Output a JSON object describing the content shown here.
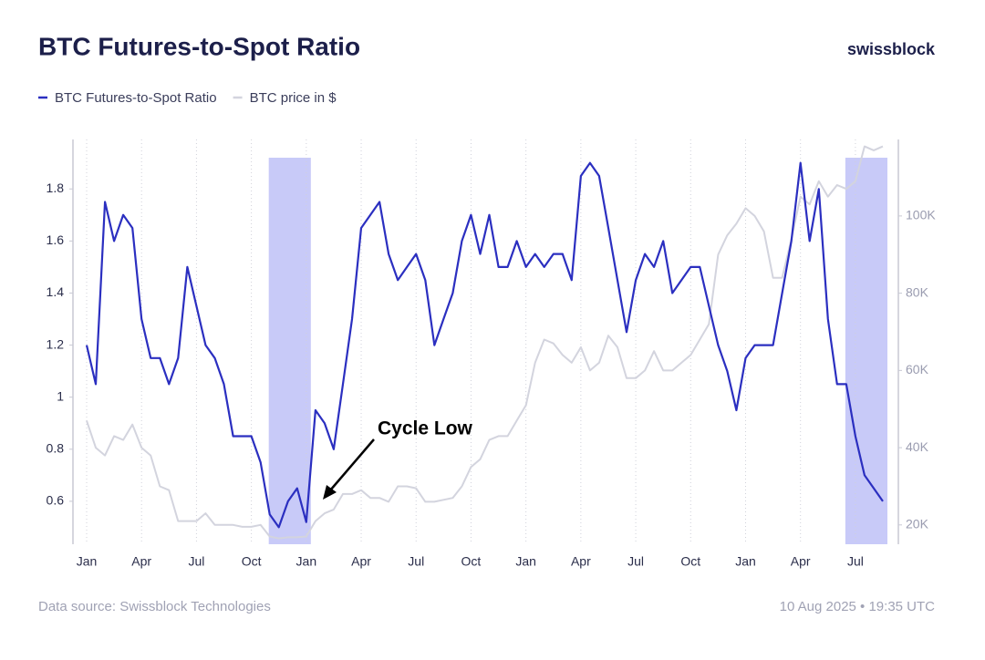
{
  "chart_data": {
    "type": "line",
    "title": "BTC Futures-to-Spot Ratio",
    "brand": "swissblock",
    "source": "Data source: Swissblock Technologies",
    "timestamp": "10 Aug 2025 • 19:35 UTC",
    "annotation": "Cycle Low",
    "categories": [
      "Jan",
      null,
      null,
      null,
      null,
      null,
      "Apr",
      null,
      null,
      null,
      null,
      null,
      "Jul",
      null,
      null,
      null,
      null,
      null,
      "Oct",
      null,
      null,
      null,
      null,
      null,
      "Jan",
      null,
      null,
      null,
      null,
      null,
      "Apr",
      null,
      null,
      null,
      null,
      null,
      "Jul",
      null,
      null,
      null,
      null,
      null,
      "Oct",
      null,
      null,
      null,
      null,
      null,
      "Jan",
      null,
      null,
      null,
      null,
      null,
      "Apr",
      null,
      null,
      null,
      null,
      null,
      "Jul",
      null,
      null,
      null,
      null,
      null,
      "Oct",
      null,
      null,
      null,
      null,
      null,
      "Jan",
      null,
      null,
      null,
      null,
      null,
      "Apr",
      null,
      null,
      null,
      null,
      null,
      "Jul",
      null,
      null,
      null
    ],
    "series": [
      {
        "name": "BTC Futures-to-Spot Ratio",
        "color": "#2b2fc0",
        "values": [
          1.2,
          1.05,
          1.75,
          1.6,
          1.7,
          1.65,
          1.3,
          1.15,
          1.15,
          1.05,
          1.15,
          1.5,
          1.35,
          1.2,
          1.15,
          1.05,
          0.85,
          0.85,
          0.85,
          0.75,
          0.55,
          0.5,
          0.6,
          0.65,
          0.52,
          0.95,
          0.9,
          0.8,
          1.05,
          1.3,
          1.65,
          1.7,
          1.75,
          1.55,
          1.45,
          1.5,
          1.55,
          1.45,
          1.2,
          1.3,
          1.4,
          1.6,
          1.7,
          1.55,
          1.7,
          1.5,
          1.5,
          1.6,
          1.5,
          1.55,
          1.5,
          1.55,
          1.55,
          1.45,
          1.85,
          1.9,
          1.85,
          1.65,
          1.45,
          1.25,
          1.45,
          1.55,
          1.5,
          1.6,
          1.4,
          1.45,
          1.5,
          1.5,
          1.35,
          1.2,
          1.1,
          0.95,
          1.15,
          1.2,
          1.2,
          1.2,
          1.4,
          1.6,
          1.9,
          1.6,
          1.8,
          1.3,
          1.05,
          1.05,
          0.85,
          0.7,
          0.65,
          0.6
        ]
      },
      {
        "name": "BTC price in $",
        "color": "#d3d4de",
        "axis": "y2",
        "values": [
          47000,
          40000,
          38000,
          43000,
          42000,
          46000,
          40000,
          38000,
          30000,
          29000,
          21000,
          21000,
          21000,
          23000,
          20000,
          20000,
          20000,
          19500,
          19500,
          20000,
          17000,
          16500,
          16800,
          16800,
          17000,
          21000,
          23000,
          24000,
          28000,
          28000,
          29000,
          27000,
          27000,
          26000,
          30000,
          30000,
          29500,
          26000,
          26000,
          26500,
          27000,
          30000,
          35000,
          37000,
          42000,
          43000,
          43000,
          47000,
          51000,
          62000,
          68000,
          67000,
          64000,
          62000,
          66000,
          60000,
          62000,
          69000,
          66000,
          58000,
          58000,
          60000,
          65000,
          60000,
          60000,
          62000,
          64000,
          68000,
          72000,
          90000,
          95000,
          98000,
          102000,
          100000,
          96000,
          84000,
          84000,
          94000,
          105000,
          103000,
          109000,
          105000,
          108000,
          107000,
          109000,
          118000,
          117000,
          118000
        ]
      }
    ],
    "highlight_ranges": [
      [
        20,
        24
      ],
      [
        83,
        87
      ]
    ],
    "highlight_color": "#c8caf8",
    "ylim": [
      0.435,
      1.99
    ],
    "yticks": [
      0.6,
      0.8,
      1,
      1.2,
      1.4,
      1.6,
      1.8
    ],
    "y2lim": [
      15000,
      119800
    ],
    "y2ticks": [
      {
        "value": 20000,
        "label": "20K"
      },
      {
        "value": 40000,
        "label": "40K"
      },
      {
        "value": 60000,
        "label": "60K"
      },
      {
        "value": 80000,
        "label": "80K"
      },
      {
        "value": 100000,
        "label": "100K"
      }
    ],
    "grid": true
  }
}
